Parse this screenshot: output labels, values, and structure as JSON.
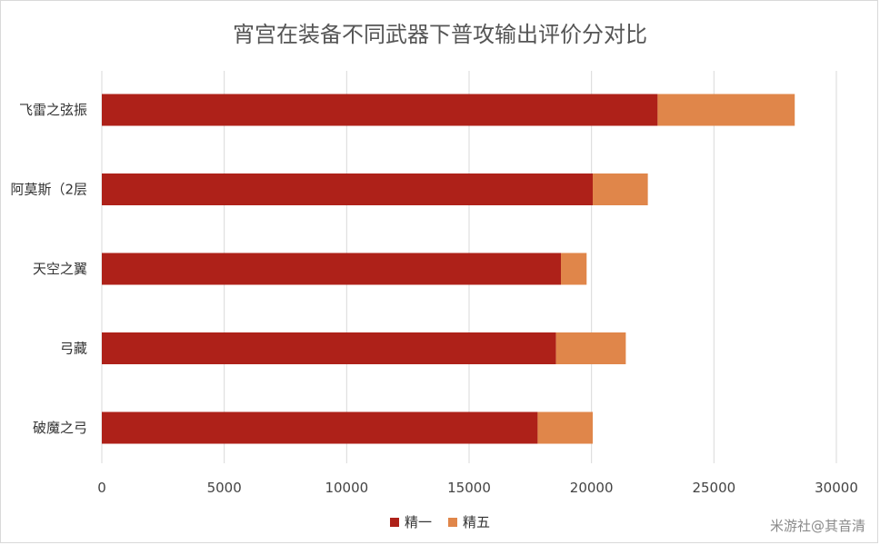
{
  "chart_data": {
    "type": "bar",
    "orientation": "horizontal",
    "stacked": true,
    "title": "宵宫在装备不同武器下普攻输出评价分对比",
    "categories": [
      "飞雷之弦振",
      "阿莫斯（2层",
      "天空之翼",
      "弓藏",
      "破魔之弓"
    ],
    "series": [
      {
        "name": "精一",
        "color": "#ae2119",
        "values": [
          22700,
          20050,
          18750,
          18550,
          17800
        ]
      },
      {
        "name": "精五",
        "color": "#e0864a",
        "values": [
          5600,
          2250,
          1050,
          2850,
          2250
        ]
      }
    ],
    "xlim": [
      0,
      30000
    ],
    "xticks": [
      "0",
      "5000",
      "10000",
      "15000",
      "20000",
      "25000",
      "30000"
    ],
    "grid": true,
    "legend": "bottom"
  },
  "watermark": "米游社@其音清"
}
